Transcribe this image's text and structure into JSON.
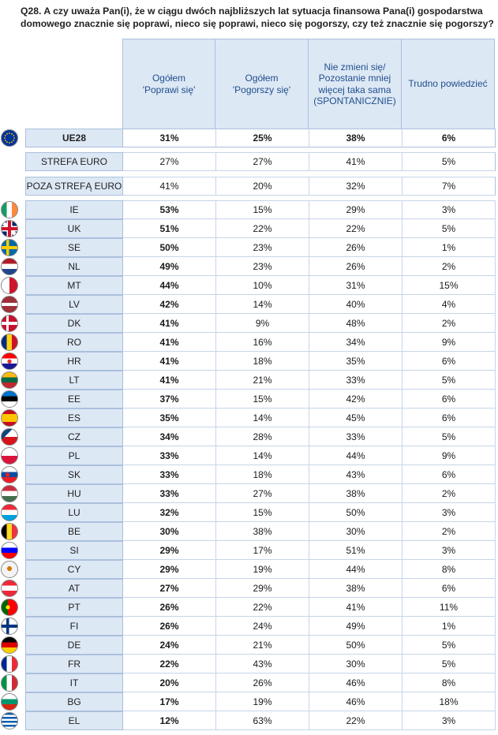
{
  "question": "Q28. A czy uważa Pan(i), że w ciągu dwóch najbliższych lat sytuacja finansowa Pana(i) gospodarstwa domowego znacznie się poprawi, nieco się poprawi, nieco się pogorszy, czy też znacznie się pogorszy?",
  "columns": [
    "Ogółem\n'Poprawi się'",
    "Ogółem\n'Pogorszy się'",
    "Nie zmieni się/\nPozostanie mniej\nwięcej taka sama\n(SPONTANICZNIE)",
    "Trudno powiedzieć"
  ],
  "summary_rows": [
    {
      "label": "UE28",
      "values": [
        "31%",
        "25%",
        "38%",
        "6%"
      ],
      "flag": "eu-flag"
    },
    {
      "label": "STREFA EURO",
      "values": [
        "27%",
        "27%",
        "41%",
        "5%"
      ]
    },
    {
      "label": "POZA STREFĄ EURO",
      "values": [
        "41%",
        "20%",
        "32%",
        "7%"
      ]
    }
  ],
  "countries": [
    {
      "label": "IE",
      "values": [
        "53%",
        "15%",
        "29%",
        "3%"
      ],
      "flag": "ie-flag"
    },
    {
      "label": "UK",
      "values": [
        "51%",
        "22%",
        "22%",
        "5%"
      ],
      "flag": "uk-flag"
    },
    {
      "label": "SE",
      "values": [
        "50%",
        "23%",
        "26%",
        "1%"
      ],
      "flag": "se-flag"
    },
    {
      "label": "NL",
      "values": [
        "49%",
        "23%",
        "26%",
        "2%"
      ],
      "flag": "nl-flag"
    },
    {
      "label": "MT",
      "values": [
        "44%",
        "10%",
        "31%",
        "15%"
      ],
      "flag": "mt-flag"
    },
    {
      "label": "LV",
      "values": [
        "42%",
        "14%",
        "40%",
        "4%"
      ],
      "flag": "lv-flag"
    },
    {
      "label": "DK",
      "values": [
        "41%",
        "9%",
        "48%",
        "2%"
      ],
      "flag": "dk-flag"
    },
    {
      "label": "RO",
      "values": [
        "41%",
        "16%",
        "34%",
        "9%"
      ],
      "flag": "ro-flag"
    },
    {
      "label": "HR",
      "values": [
        "41%",
        "18%",
        "35%",
        "6%"
      ],
      "flag": "hr-flag"
    },
    {
      "label": "LT",
      "values": [
        "41%",
        "21%",
        "33%",
        "5%"
      ],
      "flag": "lt-flag"
    },
    {
      "label": "EE",
      "values": [
        "37%",
        "15%",
        "42%",
        "6%"
      ],
      "flag": "ee-flag"
    },
    {
      "label": "ES",
      "values": [
        "35%",
        "14%",
        "45%",
        "6%"
      ],
      "flag": "es-flag"
    },
    {
      "label": "CZ",
      "values": [
        "34%",
        "28%",
        "33%",
        "5%"
      ],
      "flag": "cz-flag"
    },
    {
      "label": "PL",
      "values": [
        "33%",
        "14%",
        "44%",
        "9%"
      ],
      "flag": "pl-flag"
    },
    {
      "label": "SK",
      "values": [
        "33%",
        "18%",
        "43%",
        "6%"
      ],
      "flag": "sk-flag"
    },
    {
      "label": "HU",
      "values": [
        "33%",
        "27%",
        "38%",
        "2%"
      ],
      "flag": "hu-flag"
    },
    {
      "label": "LU",
      "values": [
        "32%",
        "15%",
        "50%",
        "3%"
      ],
      "flag": "lu-flag"
    },
    {
      "label": "BE",
      "values": [
        "30%",
        "38%",
        "30%",
        "2%"
      ],
      "flag": "be-flag"
    },
    {
      "label": "SI",
      "values": [
        "29%",
        "17%",
        "51%",
        "3%"
      ],
      "flag": "si-flag"
    },
    {
      "label": "CY",
      "values": [
        "29%",
        "19%",
        "44%",
        "8%"
      ],
      "flag": "cy-flag"
    },
    {
      "label": "AT",
      "values": [
        "27%",
        "29%",
        "38%",
        "6%"
      ],
      "flag": "at-flag"
    },
    {
      "label": "PT",
      "values": [
        "26%",
        "22%",
        "41%",
        "11%"
      ],
      "flag": "pt-flag"
    },
    {
      "label": "FI",
      "values": [
        "26%",
        "24%",
        "49%",
        "1%"
      ],
      "flag": "fi-flag"
    },
    {
      "label": "DE",
      "values": [
        "24%",
        "21%",
        "50%",
        "5%"
      ],
      "flag": "de-flag"
    },
    {
      "label": "FR",
      "values": [
        "22%",
        "43%",
        "30%",
        "5%"
      ],
      "flag": "fr-flag"
    },
    {
      "label": "IT",
      "values": [
        "20%",
        "26%",
        "46%",
        "8%"
      ],
      "flag": "it-flag"
    },
    {
      "label": "BG",
      "values": [
        "17%",
        "19%",
        "46%",
        "18%"
      ],
      "flag": "bg-flag"
    },
    {
      "label": "EL",
      "values": [
        "12%",
        "63%",
        "22%",
        "3%"
      ],
      "flag": "el-flag"
    }
  ]
}
